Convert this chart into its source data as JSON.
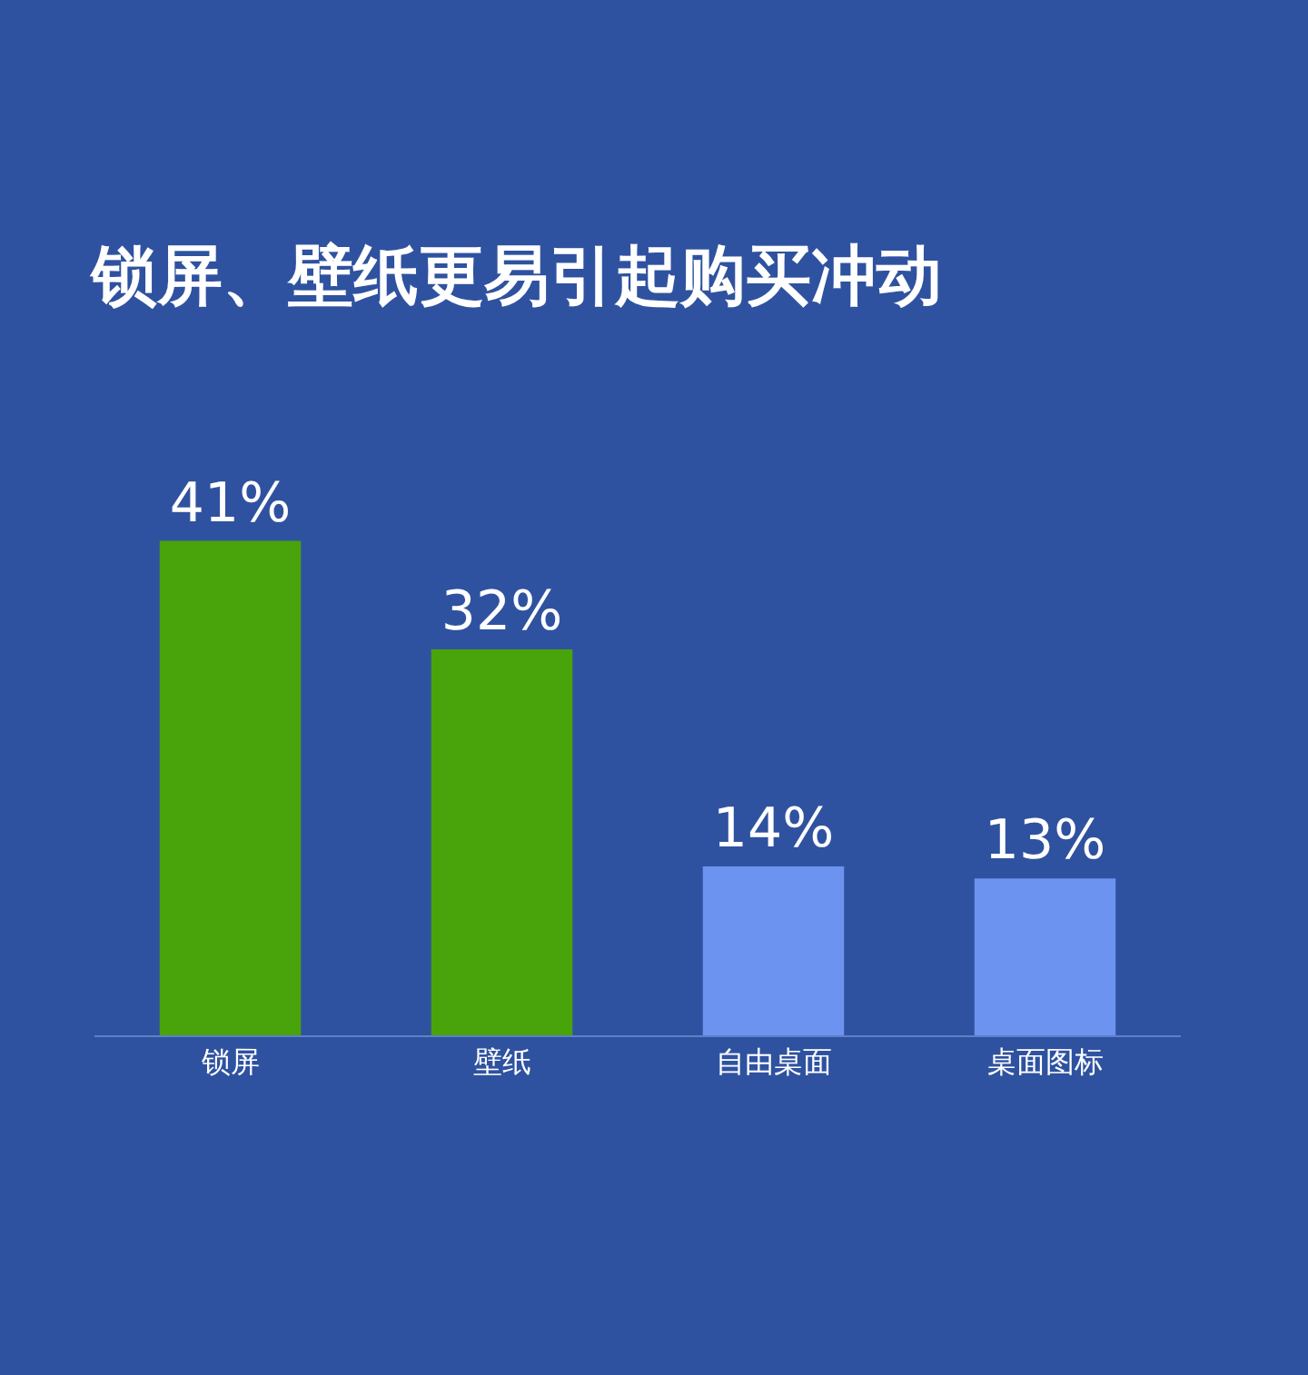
{
  "chart_data": {
    "type": "bar",
    "title": "锁屏、壁纸更易引起购买冲动",
    "categories": [
      "锁屏",
      "壁纸",
      "自由桌面",
      "桌面图标"
    ],
    "values": [
      41,
      32,
      14,
      13
    ],
    "colors": [
      "#48a40a",
      "#48a40a",
      "#6b93ef",
      "#6b93ef"
    ],
    "value_labels": [
      "41%",
      "32%",
      "14%",
      "13%"
    ],
    "grid": false,
    "legend": false
  }
}
